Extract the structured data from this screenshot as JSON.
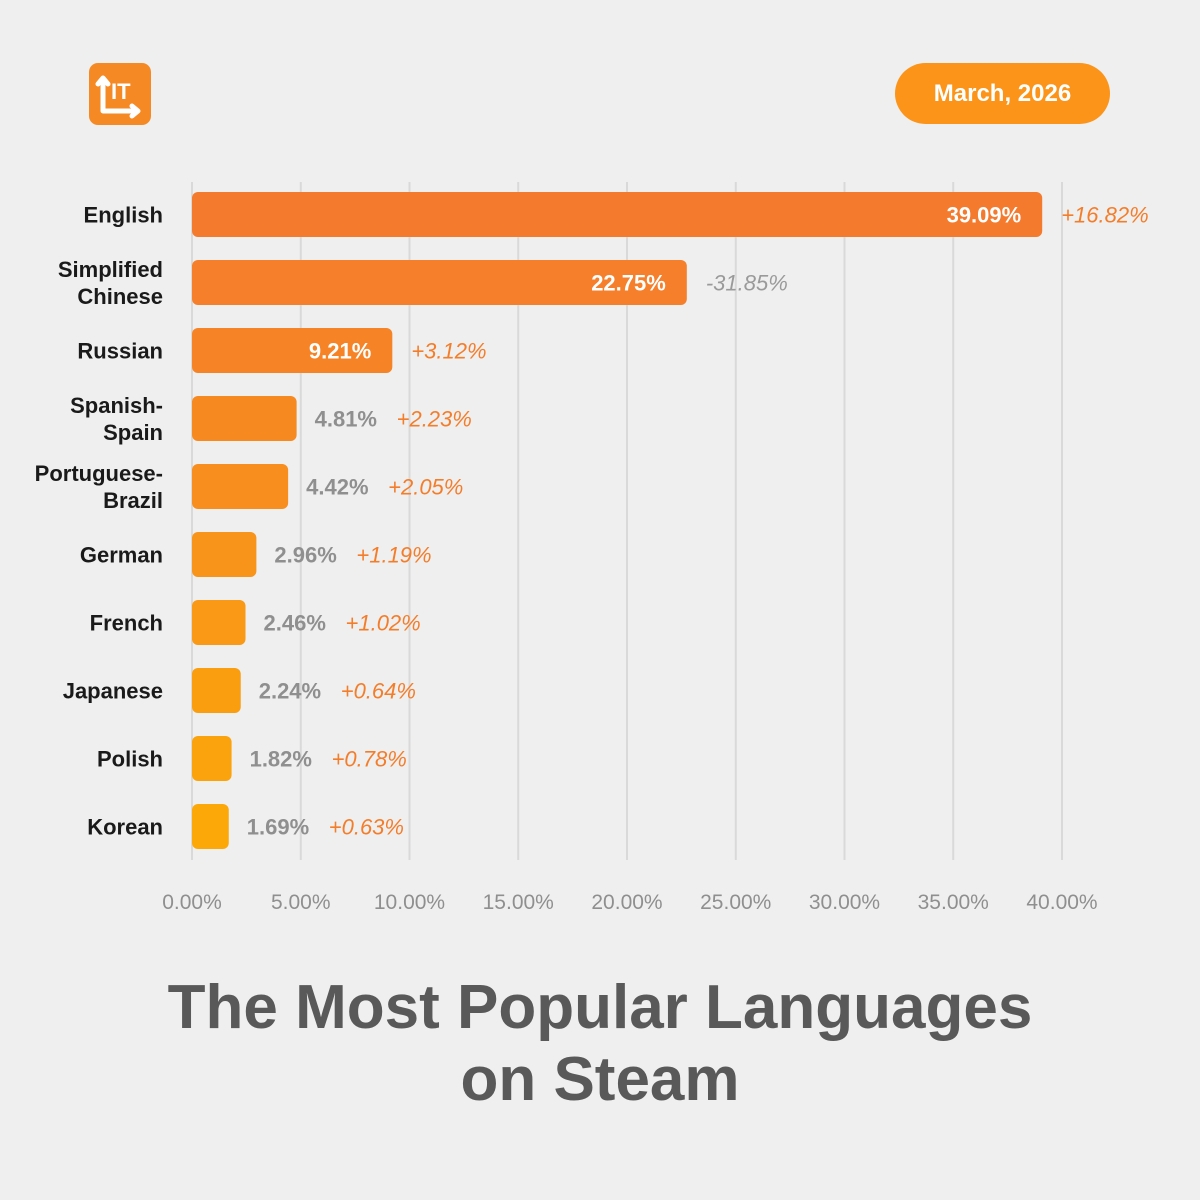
{
  "header": {
    "logo_text": "IT",
    "date_label": "March, 2026"
  },
  "colors": {
    "background": "#efefef",
    "bar_top": "#f47a2e",
    "bar_bottom": "#fca808",
    "positive_change": "#f47d2a",
    "negative_change": "#9a9a9a",
    "outside_value": "#8f8f8f",
    "inside_value": "#ffffff",
    "gridline": "#d9d9d9",
    "title": "#595959"
  },
  "chart_data": {
    "type": "bar",
    "orientation": "horizontal",
    "title": "The Most Popular Languages on Steam",
    "categories": [
      [
        "English"
      ],
      [
        "Simplified",
        "Chinese"
      ],
      [
        "Russian"
      ],
      [
        "Spanish-",
        "Spain"
      ],
      [
        "Portuguese-",
        "Brazil"
      ],
      [
        "German"
      ],
      [
        "French"
      ],
      [
        "Japanese"
      ],
      [
        "Polish"
      ],
      [
        "Korean"
      ]
    ],
    "values": [
      39.09,
      22.75,
      9.21,
      4.81,
      4.42,
      2.96,
      2.46,
      2.24,
      1.82,
      1.69
    ],
    "value_labels": [
      "39.09%",
      "22.75%",
      "9.21%",
      "4.81%",
      "4.42%",
      "2.96%",
      "2.46%",
      "2.24%",
      "1.82%",
      "1.69%"
    ],
    "value_label_inside": [
      true,
      true,
      true,
      false,
      false,
      false,
      false,
      false,
      false,
      false
    ],
    "changes": [
      "+16.82%",
      "-31.85%",
      "+3.12%",
      "+2.23%",
      "+2.05%",
      "+1.19%",
      "+1.02%",
      "+0.64%",
      "+0.78%",
      "+0.63%"
    ],
    "xlim": [
      0,
      40
    ],
    "x_ticks": [
      0,
      5,
      10,
      15,
      20,
      25,
      30,
      35,
      40
    ],
    "x_tick_labels": [
      "0.00%",
      "5.00%",
      "10.00%",
      "15.00%",
      "20.00%",
      "25.00%",
      "30.00%",
      "35.00%",
      "40.00%"
    ],
    "grid": true,
    "legend": "none"
  },
  "footer": {
    "title_lines": [
      "The Most Popular Languages",
      "on Steam"
    ]
  }
}
